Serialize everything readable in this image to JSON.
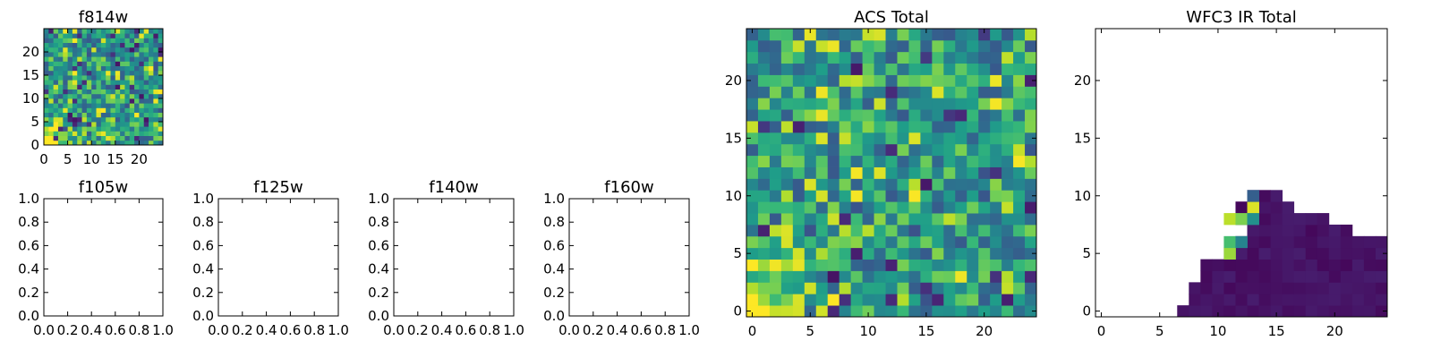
{
  "colors": {
    "background": "#ffffff",
    "axes": "#000000",
    "colormap": "viridis"
  },
  "chart_data": [
    {
      "id": "f814w",
      "type": "heatmap",
      "title": "f814w",
      "xlim": [
        0,
        25
      ],
      "ylim": [
        0,
        25
      ],
      "xticks": [
        0,
        5,
        10,
        15,
        20
      ],
      "yticks": [
        0,
        5,
        10,
        15,
        20
      ],
      "xtick_labels": [
        "0",
        "5",
        "10",
        "15",
        "20"
      ],
      "ytick_labels": [
        "0",
        "5",
        "10",
        "15",
        "20"
      ],
      "grid": false,
      "rows": 25,
      "cols": 25,
      "pattern": "noise-brighter-bottom-left"
    },
    {
      "id": "f105w",
      "type": "heatmap",
      "title": "f105w",
      "xlim": [
        0,
        1
      ],
      "ylim": [
        0,
        1
      ],
      "xticks": [
        0,
        0.2,
        0.4,
        0.6,
        0.8,
        1.0
      ],
      "yticks": [
        0,
        0.2,
        0.4,
        0.6,
        0.8,
        1.0
      ],
      "xtick_labels": [
        "0.0",
        "0.2",
        "0.4",
        "0.6",
        "0.8",
        "1.0"
      ],
      "ytick_labels": [
        "0.0",
        "0.2",
        "0.4",
        "0.6",
        "0.8",
        "1.0"
      ],
      "grid": false,
      "empty": true
    },
    {
      "id": "f125w",
      "type": "heatmap",
      "title": "f125w",
      "xlim": [
        0,
        1
      ],
      "ylim": [
        0,
        1
      ],
      "xticks": [
        0,
        0.2,
        0.4,
        0.6,
        0.8,
        1.0
      ],
      "yticks": [
        0,
        0.2,
        0.4,
        0.6,
        0.8,
        1.0
      ],
      "xtick_labels": [
        "0.0",
        "0.2",
        "0.4",
        "0.6",
        "0.8",
        "1.0"
      ],
      "ytick_labels": [
        "0.0",
        "0.2",
        "0.4",
        "0.6",
        "0.8",
        "1.0"
      ],
      "grid": false,
      "empty": true
    },
    {
      "id": "f140w",
      "type": "heatmap",
      "title": "f140w",
      "xlim": [
        0,
        1
      ],
      "ylim": [
        0,
        1
      ],
      "xticks": [
        0,
        0.2,
        0.4,
        0.6,
        0.8,
        1.0
      ],
      "yticks": [
        0,
        0.2,
        0.4,
        0.6,
        0.8,
        1.0
      ],
      "xtick_labels": [
        "0.0",
        "0.2",
        "0.4",
        "0.6",
        "0.8",
        "1.0"
      ],
      "ytick_labels": [
        "0.0",
        "0.2",
        "0.4",
        "0.6",
        "0.8",
        "1.0"
      ],
      "grid": false,
      "empty": true
    },
    {
      "id": "f160w",
      "type": "heatmap",
      "title": "f160w",
      "xlim": [
        0,
        1
      ],
      "ylim": [
        0,
        1
      ],
      "xticks": [
        0,
        0.2,
        0.4,
        0.6,
        0.8,
        1.0
      ],
      "yticks": [
        0,
        0.2,
        0.4,
        0.6,
        0.8,
        1.0
      ],
      "xtick_labels": [
        "0.0",
        "0.2",
        "0.4",
        "0.6",
        "0.8",
        "1.0"
      ],
      "ytick_labels": [
        "0.0",
        "0.2",
        "0.4",
        "0.6",
        "0.8",
        "1.0"
      ],
      "grid": false,
      "empty": true
    },
    {
      "id": "acs-total",
      "type": "heatmap",
      "title": "ACS Total",
      "xlim": [
        -0.5,
        24.5
      ],
      "ylim": [
        -0.5,
        24.5
      ],
      "xticks": [
        0,
        5,
        10,
        15,
        20
      ],
      "yticks": [
        0,
        5,
        10,
        15,
        20
      ],
      "xtick_labels": [
        "0",
        "5",
        "10",
        "15",
        "20"
      ],
      "ytick_labels": [
        "0",
        "5",
        "10",
        "15",
        "20"
      ],
      "grid": false,
      "rows": 25,
      "cols": 25,
      "pattern": "noise-brighter-bottom-left"
    },
    {
      "id": "wfc3-ir-total",
      "type": "heatmap",
      "title": "WFC3 IR Total",
      "xlim": [
        -0.5,
        24.5
      ],
      "ylim": [
        -0.5,
        24.5
      ],
      "xticks": [
        0,
        5,
        10,
        15,
        20
      ],
      "yticks": [
        0,
        5,
        10,
        15,
        20
      ],
      "xtick_labels": [
        "0",
        "5",
        "10",
        "15",
        "20"
      ],
      "ytick_labels": [
        "0",
        "5",
        "10",
        "15",
        "20"
      ],
      "grid": false,
      "rows": 25,
      "cols": 25,
      "region_rows": [
        {
          "y": 0,
          "x0": 7,
          "x1": 24
        },
        {
          "y": 1,
          "x0": 8,
          "x1": 24
        },
        {
          "y": 2,
          "x0": 8,
          "x1": 24
        },
        {
          "y": 3,
          "x0": 9,
          "x1": 24
        },
        {
          "y": 4,
          "x0": 9,
          "x1": 24
        },
        {
          "y": 5,
          "x0": 11,
          "x1": 24
        },
        {
          "y": 6,
          "x0": 12,
          "x1": 24
        },
        {
          "y": 7,
          "x0": 13,
          "x1": 21
        },
        {
          "y": 8,
          "x0": 12,
          "x1": 19
        },
        {
          "y": 9,
          "x0": 12,
          "x1": 16
        },
        {
          "y": 10,
          "x0": 13,
          "x1": 15
        }
      ],
      "bright_cells": [
        {
          "x": 11,
          "y": 5,
          "v": 0.85
        },
        {
          "x": 11,
          "y": 6,
          "v": 0.7
        },
        {
          "x": 12,
          "y": 6,
          "v": 0.45
        },
        {
          "x": 11,
          "y": 8,
          "v": 0.9
        },
        {
          "x": 12,
          "y": 8,
          "v": 0.8
        },
        {
          "x": 13,
          "y": 9,
          "v": 0.95
        },
        {
          "x": 13,
          "y": 8,
          "v": 0.5
        },
        {
          "x": 13,
          "y": 10,
          "v": 0.3
        }
      ]
    }
  ]
}
